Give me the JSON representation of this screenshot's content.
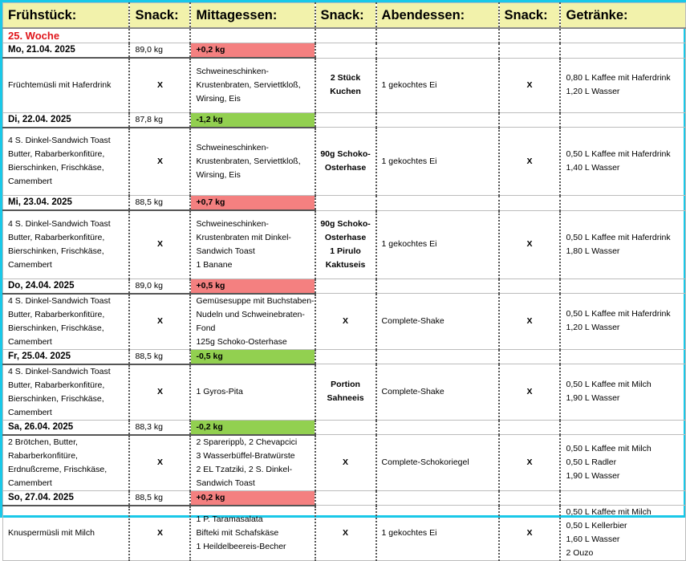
{
  "headers": [
    "Frühstück:",
    "Snack:",
    "Mittagessen:",
    "Snack:",
    "Abendessen:",
    "Snack:",
    "Getränke:"
  ],
  "week_label": "25. Woche",
  "days": [
    {
      "date": "Mo, 21.04. 2025",
      "weight": "89,0 kg",
      "delta": "+0,2 kg",
      "delta_dir": "up",
      "fruehstueck": [
        "Früchtemüsli mit Haferdrink"
      ],
      "snack1": "X",
      "mittag": [
        "Schweineschinken-",
        "Krustenbraten, Serviettkloß,",
        "Wirsing, Eis"
      ],
      "snack2": [
        "2 Stück",
        "Kuchen"
      ],
      "abend": [
        "1 gekochtes Ei"
      ],
      "snack3": "X",
      "getraenke": [
        "0,80 L Kaffee mit Haferdrink",
        "1,20 L Wasser"
      ]
    },
    {
      "date": "Di, 22.04. 2025",
      "weight": "87,8 kg",
      "delta": "-1,2 kg",
      "delta_dir": "down",
      "fruehstueck": [
        "4 S. Dinkel-Sandwich Toast",
        "Butter, Rabarberkonfitüre,",
        "Bierschinken, Frischkäse,",
        "Camembert"
      ],
      "snack1": "X",
      "mittag": [
        "Schweineschinken-",
        "Krustenbraten, Serviettkloß,",
        "Wirsing, Eis"
      ],
      "snack2": [
        "90g Schoko-",
        "Osterhase"
      ],
      "abend": [
        "1 gekochtes Ei"
      ],
      "snack3": "X",
      "getraenke": [
        "0,50 L Kaffee mit Haferdrink",
        "1,40 L Wasser"
      ]
    },
    {
      "date": "Mi, 23.04. 2025",
      "weight": "88,5 kg",
      "delta": "+0,7 kg",
      "delta_dir": "up",
      "fruehstueck": [
        "4 S. Dinkel-Sandwich Toast",
        "Butter, Rabarberkonfitüre,",
        "Bierschinken, Frischkäse,",
        "Camembert"
      ],
      "snack1": "X",
      "mittag": [
        "Schweineschinken-",
        "Krustenbraten mit Dinkel-",
        "Sandwich Toast",
        "1 Banane"
      ],
      "snack2": [
        "90g Schoko-",
        "Osterhase",
        "1 Pirulo",
        "Kaktuseis"
      ],
      "abend": [
        "1 gekochtes Ei"
      ],
      "snack3": "X",
      "getraenke": [
        "0,50 L Kaffee mit Haferdrink",
        "1,80 L Wasser"
      ]
    },
    {
      "date": "Do, 24.04. 2025",
      "weight": "89,0 kg",
      "delta": "+0,5 kg",
      "delta_dir": "up",
      "fruehstueck": [
        "4 S. Dinkel-Sandwich Toast",
        "Butter, Rabarberkonfitüre,",
        "Bierschinken, Frischkäse,",
        "Camembert"
      ],
      "snack1": "X",
      "mittag": [
        "Gemüsesuppe mit Buchstaben-",
        "Nudeln und Schweinebraten-",
        "Fond",
        "125g Schoko-Osterhase"
      ],
      "snack2": [
        "X"
      ],
      "abend": [
        "Complete-Shake"
      ],
      "snack3": "X",
      "getraenke": [
        "0,50 L Kaffee mit Haferdrink",
        "1,20 L Wasser"
      ]
    },
    {
      "date": "Fr, 25.04. 2025",
      "weight": "88,5 kg",
      "delta": "-0,5 kg",
      "delta_dir": "down",
      "fruehstueck": [
        "4 S. Dinkel-Sandwich Toast",
        "Butter, Rabarberkonfitüre,",
        "Bierschinken, Frischkäse,",
        "Camembert"
      ],
      "snack1": "X",
      "mittag": [
        "1 Gyros-Pita"
      ],
      "snack2": [
        "Portion",
        "Sahneeis"
      ],
      "abend": [
        "Complete-Shake"
      ],
      "snack3": "X",
      "getraenke": [
        "0,50 L Kaffee mit Milch",
        "1,90 L Wasser"
      ]
    },
    {
      "date": "Sa, 26.04. 2025",
      "weight": "88,3 kg",
      "delta": "-0,2 kg",
      "delta_dir": "down",
      "fruehstueck": [
        "2 Brötchen, Butter,",
        "Rabarberkonfitüre,",
        "Erdnußcreme, Frischkäse,",
        "Camembert"
      ],
      "snack1": "X",
      "mittag": [
        "2 Sparerippს, 2 Chevapcici",
        "3 Wasserbüffel-Bratwürste",
        "2 EL Tzatziki, 2 S. Dinkel-",
        "Sandwich Toast"
      ],
      "snack2": [
        "X"
      ],
      "abend": [
        "Complete-Schokoriegel"
      ],
      "snack3": "X",
      "getraenke": [
        "0,50 L Kaffee mit Milch",
        "0,50 L Radler",
        "1,90 L Wasser"
      ]
    },
    {
      "date": "So, 27.04. 2025",
      "weight": "88,5 kg",
      "delta": "+0,2 kg",
      "delta_dir": "up",
      "fruehstueck": [
        "Knuspermüsli mit Milch"
      ],
      "snack1": "X",
      "mittag": [
        "1 P. Taramasalata",
        "Bifteki mit Schafskäse",
        "1 Heildelbeereis-Becher"
      ],
      "snack2": [
        "X"
      ],
      "abend": [
        "1 gekochtes Ei"
      ],
      "snack3": "X",
      "getraenke": [
        "0,50 L Kaffee mit Milch",
        "0,50 L Kellerbier",
        "1,60 L Wasser",
        "2 Ouzo"
      ]
    }
  ]
}
